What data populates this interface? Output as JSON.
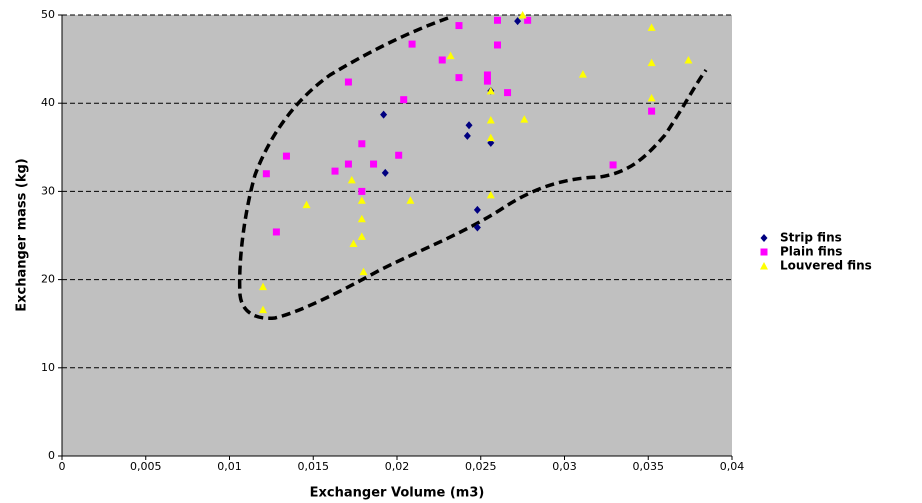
{
  "chart_data": {
    "type": "scatter",
    "x_label": "Exchanger Volume (m3)",
    "y_label": "Exchanger mass (kg)",
    "xlim": [
      0,
      0.04
    ],
    "xticks": [
      0,
      {
        "value": 0.005,
        "label": "0,005"
      },
      {
        "value": 0.01,
        "label": "0,01"
      },
      {
        "value": 0.015,
        "label": "0,015"
      },
      {
        "value": 0.02,
        "label": "0,02"
      },
      {
        "value": 0.025,
        "label": "0,025"
      },
      {
        "value": 0.03,
        "label": "0,03"
      },
      {
        "value": 0.035,
        "label": "0,035"
      },
      {
        "value": 0.04,
        "label": "0,04"
      }
    ],
    "ylim": [
      0,
      50
    ],
    "yticks": [
      0,
      10,
      20,
      30,
      40,
      50
    ],
    "grid": true,
    "legend": "right",
    "series": [
      {
        "name": "Strip fins",
        "color": "#000080",
        "marker": "diamond",
        "x": [
          0.0192,
          0.0193,
          0.0243,
          0.0242,
          0.0248,
          0.0248,
          0.0256,
          0.0256,
          0.0272
        ],
        "values": [
          38.7,
          32.1,
          37.5,
          36.3,
          27.9,
          25.9,
          35.5,
          41.4,
          49.3
        ]
      },
      {
        "name": "Plain fins",
        "color": "#ff00ff",
        "marker": "square",
        "x": [
          0.0122,
          0.0128,
          0.0134,
          0.0163,
          0.0171,
          0.0171,
          0.0179,
          0.0179,
          0.0186,
          0.0201,
          0.0204,
          0.0209,
          0.0227,
          0.0237,
          0.0237,
          0.0254,
          0.0254,
          0.026,
          0.026,
          0.0266,
          0.0278,
          0.0329,
          0.0352
        ],
        "values": [
          32.0,
          25.4,
          34.0,
          32.3,
          33.1,
          42.4,
          35.4,
          30.0,
          33.1,
          34.1,
          40.4,
          46.7,
          44.9,
          48.8,
          42.9,
          43.2,
          42.5,
          49.4,
          46.6,
          41.2,
          49.4,
          33.0,
          39.1
        ]
      },
      {
        "name": "Louvered fins",
        "color": "#ffff00",
        "marker": "triangle",
        "x": [
          0.012,
          0.012,
          0.0146,
          0.0173,
          0.0174,
          0.0179,
          0.0179,
          0.0179,
          0.018,
          0.0208,
          0.0232,
          0.0256,
          0.0256,
          0.0256,
          0.0256,
          0.0276,
          0.0275,
          0.0311,
          0.0352,
          0.0352,
          0.0352,
          0.0374
        ],
        "values": [
          19.2,
          16.6,
          28.5,
          31.3,
          24.1,
          29.0,
          26.9,
          24.9,
          20.9,
          29.0,
          45.4,
          41.4,
          38.1,
          36.1,
          29.6,
          38.2,
          50.0,
          43.3,
          48.6,
          44.6,
          40.6,
          44.9
        ]
      }
    ]
  }
}
